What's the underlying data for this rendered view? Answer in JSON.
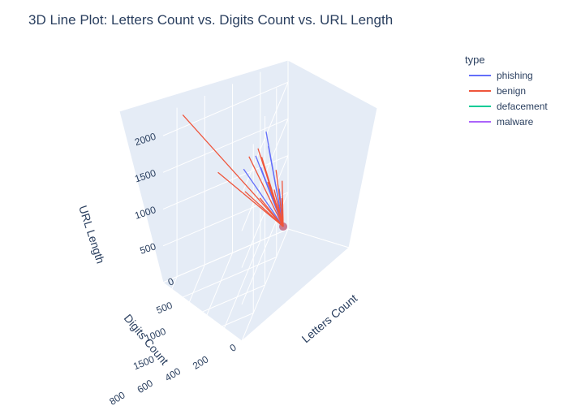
{
  "chart_data": {
    "type": "line",
    "variant": "3d",
    "title": "3D Line Plot: Letters Count vs. Digits Count vs. URL Length",
    "legend": {
      "title": "type",
      "placement": "top-right"
    },
    "axes": {
      "x": {
        "label": "Letters Count",
        "ticks": [
          0,
          500,
          1000,
          1500
        ],
        "range": [
          0,
          2000
        ]
      },
      "y": {
        "label": "Digits Count",
        "ticks": [
          0,
          200,
          400,
          600,
          800
        ],
        "range": [
          0,
          900
        ]
      },
      "z": {
        "label": "URL Length",
        "ticks": [
          500,
          1000,
          1500,
          2000
        ],
        "range": [
          0,
          2300
        ]
      }
    },
    "grid": true,
    "hub": {
      "x": 30,
      "y": 30,
      "z": 80
    },
    "series": [
      {
        "name": "phishing",
        "color": "#636efa",
        "points": [
          {
            "x": 250,
            "y": 100,
            "z": 1400
          },
          {
            "x": 400,
            "y": 130,
            "z": 1250
          },
          {
            "x": 120,
            "y": 300,
            "z": 1150
          },
          {
            "x": 230,
            "y": 120,
            "z": 1600
          },
          {
            "x": 80,
            "y": 50,
            "z": 650
          },
          {
            "x": 120,
            "y": 60,
            "z": 520
          },
          {
            "x": 500,
            "y": 150,
            "z": 1500
          }
        ]
      },
      {
        "name": "benign",
        "color": "#ef553b",
        "points": [
          {
            "x": 1330,
            "y": 60,
            "z": 2050
          },
          {
            "x": 1000,
            "y": 50,
            "z": 1900
          },
          {
            "x": 900,
            "y": 40,
            "z": 1700
          },
          {
            "x": 700,
            "y": 30,
            "z": 1200
          },
          {
            "x": 450,
            "y": 25,
            "z": 900
          },
          {
            "x": 320,
            "y": 20,
            "z": 600
          },
          {
            "x": 50,
            "y": 750,
            "z": 2200
          },
          {
            "x": 30,
            "y": 500,
            "z": 1200
          },
          {
            "x": 20,
            "y": 200,
            "z": 600
          },
          {
            "x": 60,
            "y": 300,
            "z": 800
          },
          {
            "x": 40,
            "y": 80,
            "z": 900
          },
          {
            "x": 15,
            "y": 40,
            "z": 700
          },
          {
            "x": 150,
            "y": 20,
            "z": 550
          }
        ]
      },
      {
        "name": "defacement",
        "color": "#00cc96",
        "points": []
      },
      {
        "name": "malware",
        "color": "#ab63fa",
        "points": []
      }
    ]
  }
}
